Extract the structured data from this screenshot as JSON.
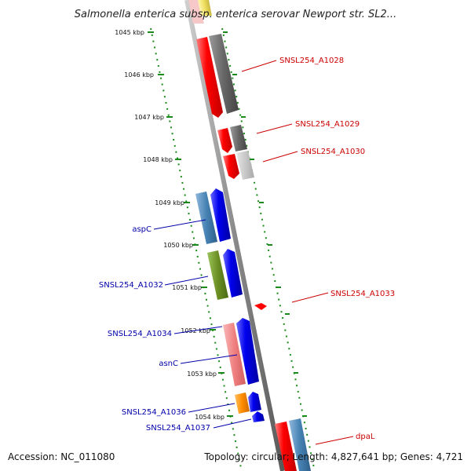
{
  "title": "Salmonella enterica subsp. enterica serovar Newport str. SL2...",
  "accession": "Accession: NC_011080",
  "summary": "Topology: circular; Length: 4,827,641 bp; Genes: 4,721",
  "ticks": [
    {
      "label": "1045 kbp"
    },
    {
      "label": "1046 kbp"
    },
    {
      "label": "1047 kbp"
    },
    {
      "label": "1048 kbp"
    },
    {
      "label": "1049 kbp"
    },
    {
      "label": "1050 kbp"
    },
    {
      "label": "1051 kbp"
    },
    {
      "label": "1052 kbp"
    },
    {
      "label": "1053 kbp"
    },
    {
      "label": "1054 kbp"
    }
  ],
  "labels_right": [
    {
      "text": "SNSL254_A1028",
      "color": "#cc0000"
    },
    {
      "text": "SNSL254_A1029",
      "color": "#cc0000"
    },
    {
      "text": "SNSL254_A1030",
      "color": "#cc0000"
    },
    {
      "text": "SNSL254_A1033",
      "color": "#cc0000"
    },
    {
      "text": "dpaL",
      "color": "#cc0000"
    }
  ],
  "labels_left": [
    {
      "text": "aspC",
      "color": "#0000aa"
    },
    {
      "text": "SNSL254_A1032",
      "color": "#0000aa"
    },
    {
      "text": "SNSL254_A1034",
      "color": "#0000aa"
    },
    {
      "text": "asnC",
      "color": "#0000aa"
    },
    {
      "text": "SNSL254_A1036",
      "color": "#0000aa"
    },
    {
      "text": "SNSL254_A1037",
      "color": "#0000aa"
    }
  ],
  "colors": {
    "backbone": "#8a8a8a",
    "tick": "#1a8a1a",
    "gene_red": "#ff0000",
    "gene_blue": "#0000ee",
    "gene_dark_grey": "#666666",
    "gene_light_grey": "#c8c8c8",
    "gene_steel_blue": "#4682b4",
    "gene_olive": "#6b8e23",
    "gene_pink": "#f08080",
    "gene_orange": "#ff8c00",
    "gene_yellow": "#f0e060"
  }
}
